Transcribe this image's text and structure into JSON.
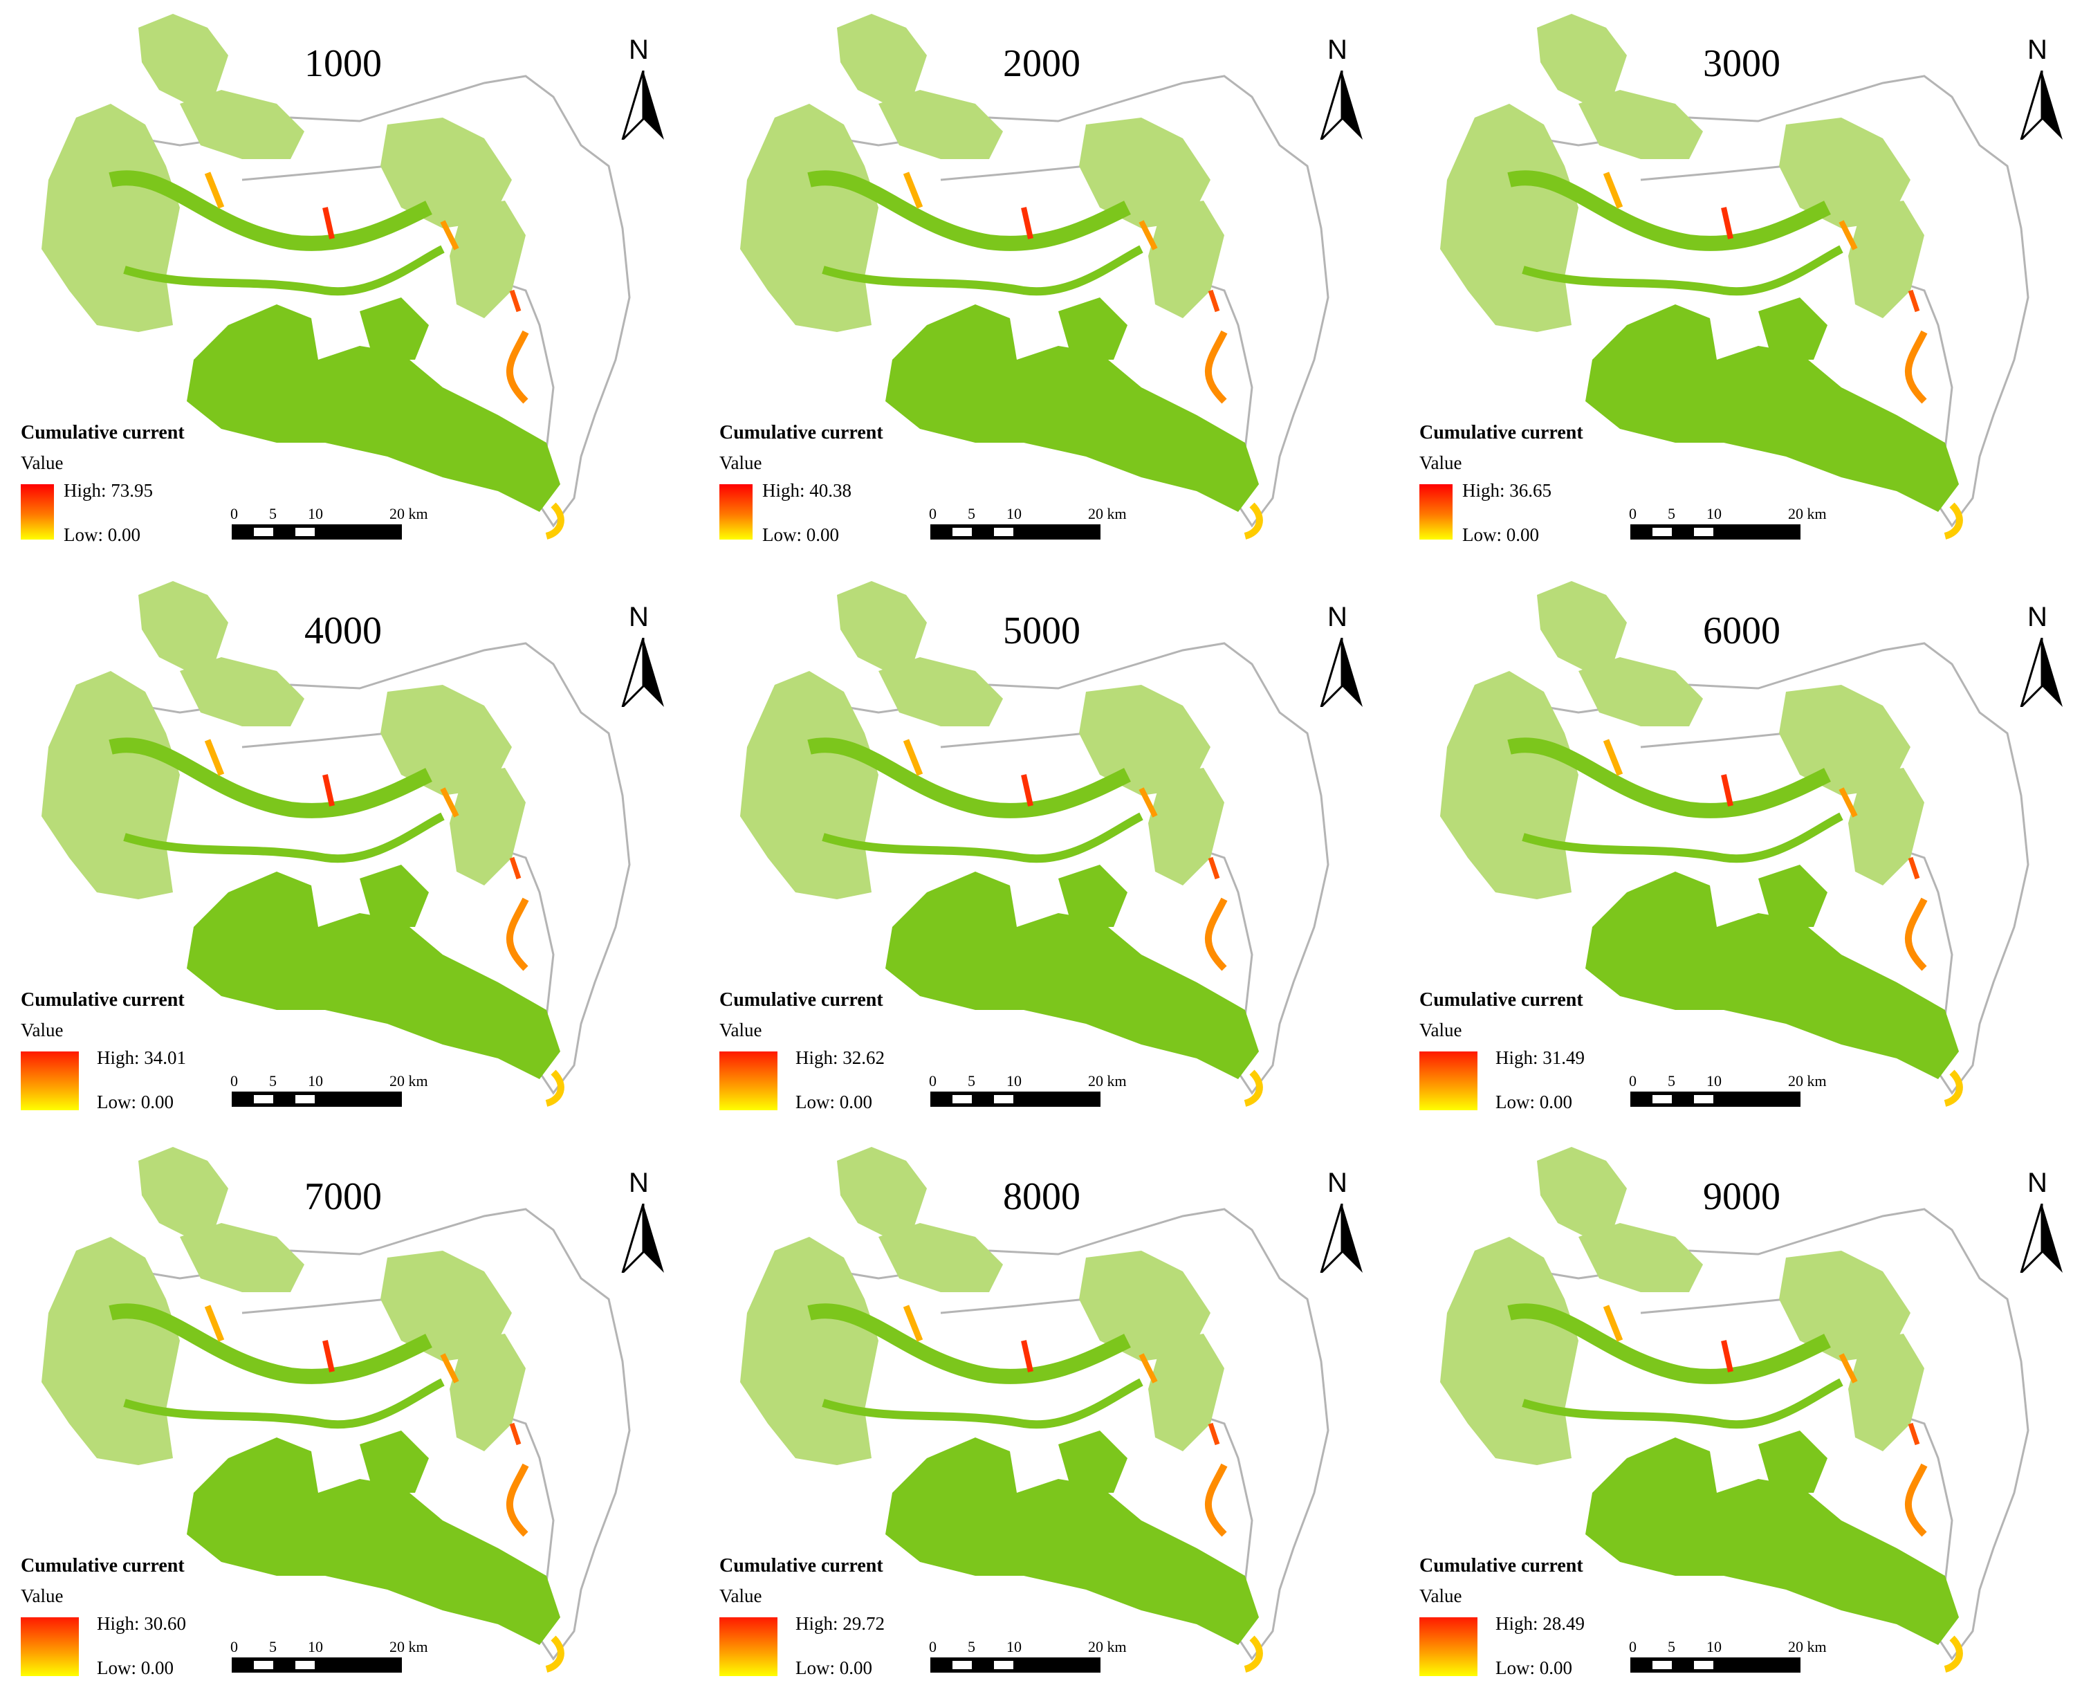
{
  "panels": [
    {
      "title": "1000",
      "legend_title": "Cumulative current",
      "value_label": "Value",
      "high": "High: 73.95",
      "low": "Low: 0.00"
    },
    {
      "title": "2000",
      "legend_title": "Cumulative current",
      "value_label": "Value",
      "high": "High: 40.38",
      "low": "Low: 0.00"
    },
    {
      "title": "3000",
      "legend_title": "Cumulative current",
      "value_label": "Value",
      "high": "High: 36.65",
      "low": "Low: 0.00"
    },
    {
      "title": "4000",
      "legend_title": "Cumulative current",
      "value_label": "Value",
      "high": "High: 34.01",
      "low": "Low: 0.00"
    },
    {
      "title": "5000",
      "legend_title": "Cumulative current",
      "value_label": "Value",
      "high": "High: 32.62",
      "low": "Low: 0.00"
    },
    {
      "title": "6000",
      "legend_title": "Cumulative current",
      "value_label": "Value",
      "high": "High: 31.49",
      "low": "Low: 0.00"
    },
    {
      "title": "7000",
      "legend_title": "Cumulative current",
      "value_label": "Value",
      "high": "High: 30.60",
      "low": "Low: 0.00"
    },
    {
      "title": "8000",
      "legend_title": "Cumulative current",
      "value_label": "Value",
      "high": "High: 29.72",
      "low": "Low: 0.00"
    },
    {
      "title": "9000",
      "legend_title": "Cumulative current",
      "value_label": "Value",
      "high": "High: 28.49",
      "low": "Low: 0.00"
    }
  ],
  "north_label": "N",
  "scale_labels": [
    "0",
    "5",
    "10",
    "20 km"
  ],
  "colors": {
    "habitat_light": "#b8dc78",
    "habitat_dark": "#7cc61c",
    "boundary": "#b4b4b4",
    "ramp_high": "#ff0000",
    "ramp_low": "#ffff00"
  }
}
